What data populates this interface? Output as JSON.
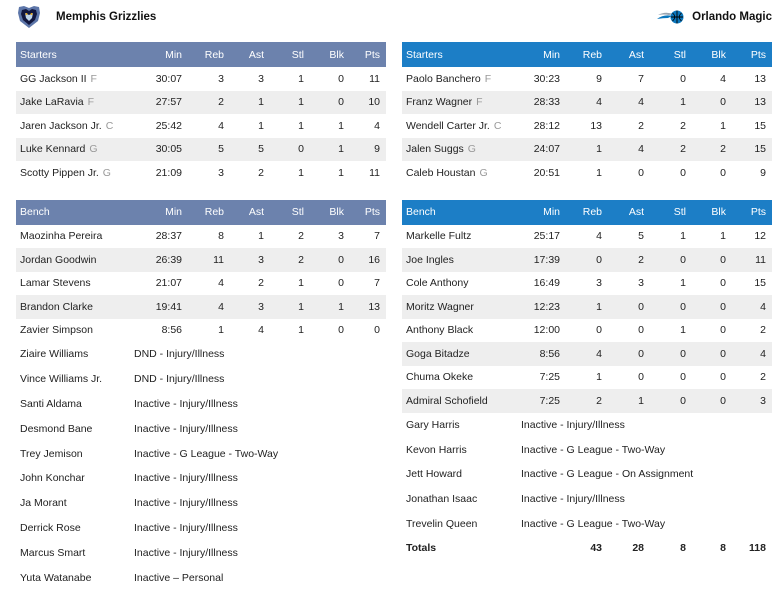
{
  "home": {
    "name": "Memphis Grizzlies",
    "starters": {
      "headers": [
        "Starters",
        "Min",
        "Reb",
        "Ast",
        "Stl",
        "Blk",
        "Pts"
      ],
      "rows": [
        {
          "name": "GG Jackson II",
          "pos": "F",
          "min": "30:07",
          "reb": "3",
          "ast": "3",
          "stl": "1",
          "blk": "0",
          "pts": "11"
        },
        {
          "name": "Jake LaRavia",
          "pos": "F",
          "min": "27:57",
          "reb": "2",
          "ast": "1",
          "stl": "1",
          "blk": "0",
          "pts": "10"
        },
        {
          "name": "Jaren Jackson Jr.",
          "pos": "C",
          "min": "25:42",
          "reb": "4",
          "ast": "1",
          "stl": "1",
          "blk": "1",
          "pts": "4"
        },
        {
          "name": "Luke Kennard",
          "pos": "G",
          "min": "30:05",
          "reb": "5",
          "ast": "5",
          "stl": "0",
          "blk": "1",
          "pts": "9"
        },
        {
          "name": "Scotty Pippen Jr.",
          "pos": "G",
          "min": "21:09",
          "reb": "3",
          "ast": "2",
          "stl": "1",
          "blk": "1",
          "pts": "11"
        }
      ]
    },
    "bench": {
      "headers": [
        "Bench",
        "Min",
        "Reb",
        "Ast",
        "Stl",
        "Blk",
        "Pts"
      ],
      "rows": [
        {
          "name": "Maozinha Pereira",
          "min": "28:37",
          "reb": "8",
          "ast": "1",
          "stl": "2",
          "blk": "3",
          "pts": "7"
        },
        {
          "name": "Jordan Goodwin",
          "min": "26:39",
          "reb": "11",
          "ast": "3",
          "stl": "2",
          "blk": "0",
          "pts": "16"
        },
        {
          "name": "Lamar Stevens",
          "min": "21:07",
          "reb": "4",
          "ast": "2",
          "stl": "1",
          "blk": "0",
          "pts": "7"
        },
        {
          "name": "Brandon Clarke",
          "min": "19:41",
          "reb": "4",
          "ast": "3",
          "stl": "1",
          "blk": "1",
          "pts": "13"
        },
        {
          "name": "Zavier Simpson",
          "min": "8:56",
          "reb": "1",
          "ast": "4",
          "stl": "1",
          "blk": "0",
          "pts": "0"
        }
      ]
    },
    "dnp": [
      {
        "name": "Ziaire Williams",
        "status": "DND - Injury/Illness"
      },
      {
        "name": "Vince Williams Jr.",
        "status": "DND - Injury/Illness"
      },
      {
        "name": "Santi Aldama",
        "status": "Inactive - Injury/Illness"
      },
      {
        "name": "Desmond Bane",
        "status": "Inactive - Injury/Illness"
      },
      {
        "name": "Trey Jemison",
        "status": "Inactive - G League - Two-Way"
      },
      {
        "name": "John Konchar",
        "status": "Inactive - Injury/Illness"
      },
      {
        "name": "Ja Morant",
        "status": "Inactive - Injury/Illness"
      },
      {
        "name": "Derrick Rose",
        "status": "Inactive - Injury/Illness"
      },
      {
        "name": "Marcus Smart",
        "status": "Inactive - Injury/Illness"
      },
      {
        "name": "Yuta Watanabe",
        "status": "Inactive – Personal"
      }
    ]
  },
  "away": {
    "name": "Orlando Magic",
    "starters": {
      "headers": [
        "Starters",
        "Min",
        "Reb",
        "Ast",
        "Stl",
        "Blk",
        "Pts"
      ],
      "rows": [
        {
          "name": "Paolo Banchero",
          "pos": "F",
          "min": "30:23",
          "reb": "9",
          "ast": "7",
          "stl": "0",
          "blk": "4",
          "pts": "13"
        },
        {
          "name": "Franz Wagner",
          "pos": "F",
          "min": "28:33",
          "reb": "4",
          "ast": "4",
          "stl": "1",
          "blk": "0",
          "pts": "13"
        },
        {
          "name": "Wendell Carter Jr.",
          "pos": "C",
          "min": "28:12",
          "reb": "13",
          "ast": "2",
          "stl": "2",
          "blk": "1",
          "pts": "15"
        },
        {
          "name": "Jalen Suggs",
          "pos": "G",
          "min": "24:07",
          "reb": "1",
          "ast": "4",
          "stl": "2",
          "blk": "2",
          "pts": "15"
        },
        {
          "name": "Caleb Houstan",
          "pos": "G",
          "min": "20:51",
          "reb": "1",
          "ast": "0",
          "stl": "0",
          "blk": "0",
          "pts": "9"
        }
      ]
    },
    "bench": {
      "headers": [
        "Bench",
        "Min",
        "Reb",
        "Ast",
        "Stl",
        "Blk",
        "Pts"
      ],
      "rows": [
        {
          "name": "Markelle Fultz",
          "min": "25:17",
          "reb": "4",
          "ast": "5",
          "stl": "1",
          "blk": "1",
          "pts": "12"
        },
        {
          "name": "Joe Ingles",
          "min": "17:39",
          "reb": "0",
          "ast": "2",
          "stl": "0",
          "blk": "0",
          "pts": "11"
        },
        {
          "name": "Cole Anthony",
          "min": "16:49",
          "reb": "3",
          "ast": "3",
          "stl": "1",
          "blk": "0",
          "pts": "15"
        },
        {
          "name": "Moritz Wagner",
          "min": "12:23",
          "reb": "1",
          "ast": "0",
          "stl": "0",
          "blk": "0",
          "pts": "4"
        },
        {
          "name": "Anthony Black",
          "min": "12:00",
          "reb": "0",
          "ast": "0",
          "stl": "1",
          "blk": "0",
          "pts": "2"
        },
        {
          "name": "Goga Bitadze",
          "min": "8:56",
          "reb": "4",
          "ast": "0",
          "stl": "0",
          "blk": "0",
          "pts": "4"
        },
        {
          "name": "Chuma Okeke",
          "min": "7:25",
          "reb": "1",
          "ast": "0",
          "stl": "0",
          "blk": "0",
          "pts": "2"
        },
        {
          "name": "Admiral Schofield",
          "min": "7:25",
          "reb": "2",
          "ast": "1",
          "stl": "0",
          "blk": "0",
          "pts": "3"
        }
      ]
    },
    "dnp": [
      {
        "name": "Gary Harris",
        "status": "Inactive - Injury/Illness"
      },
      {
        "name": "Kevon Harris",
        "status": "Inactive - G League - Two-Way"
      },
      {
        "name": "Jett Howard",
        "status": "Inactive - G League - On Assignment"
      },
      {
        "name": "Jonathan Isaac",
        "status": "Inactive - Injury/Illness"
      },
      {
        "name": "Trevelin Queen",
        "status": "Inactive - G League - Two-Way"
      }
    ],
    "totals": {
      "label": "Totals",
      "reb": "43",
      "ast": "28",
      "stl": "8",
      "blk": "8",
      "pts": "118"
    }
  },
  "icons": {
    "home_logo": "grizzlies-logo-icon",
    "away_logo": "magic-logo-icon"
  },
  "colors": {
    "home_header": "#6c82ad",
    "away_header": "#1c7ec6",
    "stripe": "#eeeeee"
  }
}
